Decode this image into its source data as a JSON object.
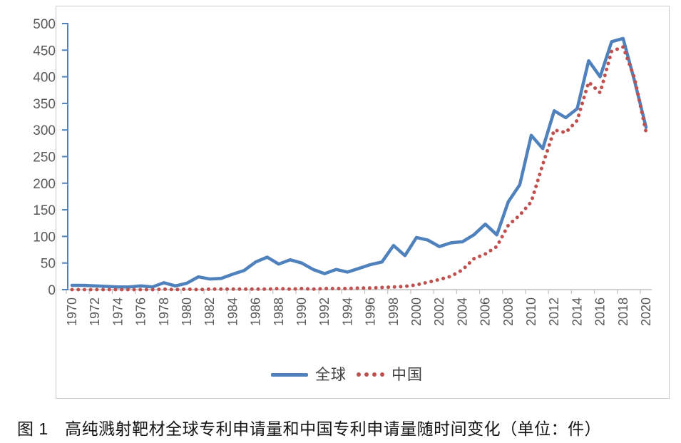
{
  "figure": {
    "caption": "图 1　高纯溅射靶材全球专利申请量和中国专利申请量随时间变化（单位：件）"
  },
  "chart_data": {
    "type": "line",
    "title": "",
    "xlabel": "",
    "ylabel": "",
    "x": [
      1970,
      1971,
      1972,
      1973,
      1974,
      1975,
      1976,
      1977,
      1978,
      1979,
      1980,
      1981,
      1982,
      1983,
      1984,
      1985,
      1986,
      1987,
      1988,
      1989,
      1990,
      1991,
      1992,
      1993,
      1994,
      1995,
      1996,
      1997,
      1998,
      1999,
      2000,
      2001,
      2002,
      2003,
      2004,
      2005,
      2006,
      2007,
      2008,
      2009,
      2010,
      2011,
      2012,
      2013,
      2014,
      2015,
      2016,
      2017,
      2018,
      2019,
      2020
    ],
    "series": [
      {
        "name": "全球",
        "color": "#4F81BD",
        "style": "solid",
        "values": [
          8,
          8,
          7,
          6,
          5,
          5,
          7,
          5,
          13,
          7,
          12,
          24,
          20,
          21,
          29,
          36,
          52,
          61,
          48,
          56,
          50,
          38,
          30,
          38,
          33,
          40,
          47,
          52,
          83,
          64,
          98,
          93,
          81,
          88,
          90,
          103,
          123,
          103,
          165,
          197,
          290,
          265,
          336,
          323,
          340,
          430,
          400,
          466,
          472,
          392,
          305
        ]
      },
      {
        "name": "中国",
        "color": "#C0504D",
        "style": "dotted",
        "values": [
          0,
          0,
          0,
          0,
          0,
          0,
          0,
          0,
          1,
          0,
          1,
          0,
          1,
          1,
          1,
          1,
          1,
          1,
          2,
          1,
          2,
          1,
          2,
          2,
          2,
          3,
          3,
          4,
          5,
          6,
          9,
          14,
          19,
          25,
          37,
          58,
          67,
          81,
          121,
          140,
          165,
          235,
          300,
          295,
          318,
          390,
          370,
          448,
          456,
          397,
          296
        ]
      }
    ],
    "ylim": [
      0,
      500
    ],
    "ytick_step": 50,
    "xtick_label_every": 2,
    "grid": false,
    "legend_position": "bottom",
    "axis_color": "#4F81BD",
    "xaxis_color": "#bfbfbf",
    "tick_label_color": "#595959"
  }
}
